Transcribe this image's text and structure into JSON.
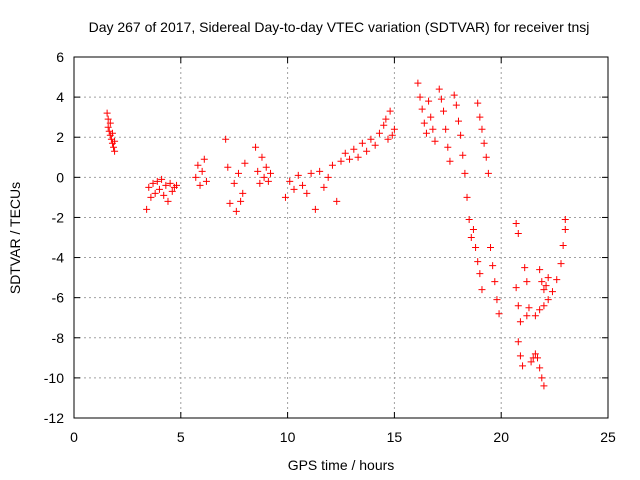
{
  "chart_data": {
    "type": "scatter",
    "title": "Day 267 of 2017, Sidereal Day-to-day VTEC variation (SDTVAR) for receiver tnsj",
    "xlabel": "GPS time / hours",
    "ylabel": "SDTVAR / TECUs",
    "xlim": [
      0,
      25
    ],
    "ylim": [
      -12,
      6
    ],
    "xticks": [
      0,
      5,
      10,
      15,
      20,
      25
    ],
    "yticks": [
      -12,
      -10,
      -8,
      -6,
      -4,
      -2,
      0,
      2,
      4,
      6
    ],
    "grid": true,
    "marker": "+",
    "color": "#ff0000",
    "series": [
      {
        "name": "SDTVAR",
        "points": [
          [
            1.55,
            3.2
          ],
          [
            1.6,
            2.9
          ],
          [
            1.6,
            2.5
          ],
          [
            1.65,
            2.3
          ],
          [
            1.7,
            2.1
          ],
          [
            1.7,
            2.7
          ],
          [
            1.75,
            1.9
          ],
          [
            1.8,
            1.7
          ],
          [
            1.8,
            2.2
          ],
          [
            1.85,
            1.5
          ],
          [
            1.9,
            1.3
          ],
          [
            1.9,
            1.8
          ],
          [
            3.4,
            -1.6
          ],
          [
            3.5,
            -0.5
          ],
          [
            3.6,
            -1.0
          ],
          [
            3.7,
            -0.3
          ],
          [
            3.8,
            -0.8
          ],
          [
            3.9,
            -0.2
          ],
          [
            4.0,
            -0.6
          ],
          [
            4.1,
            -0.1
          ],
          [
            4.2,
            -0.9
          ],
          [
            4.3,
            -0.4
          ],
          [
            4.4,
            -1.2
          ],
          [
            4.5,
            -0.3
          ],
          [
            4.6,
            -0.7
          ],
          [
            4.7,
            -0.5
          ],
          [
            4.8,
            -0.4
          ],
          [
            5.7,
            0.0
          ],
          [
            5.8,
            0.6
          ],
          [
            5.9,
            -0.4
          ],
          [
            6.0,
            0.3
          ],
          [
            6.1,
            0.9
          ],
          [
            6.2,
            -0.2
          ],
          [
            7.1,
            1.9
          ],
          [
            7.2,
            0.5
          ],
          [
            7.3,
            -1.3
          ],
          [
            7.5,
            -0.3
          ],
          [
            7.6,
            -1.7
          ],
          [
            7.7,
            0.2
          ],
          [
            7.8,
            -1.2
          ],
          [
            7.9,
            -0.8
          ],
          [
            8.0,
            0.7
          ],
          [
            8.5,
            1.5
          ],
          [
            8.6,
            0.3
          ],
          [
            8.7,
            -0.3
          ],
          [
            8.8,
            1.0
          ],
          [
            8.9,
            0.0
          ],
          [
            9.0,
            0.5
          ],
          [
            9.1,
            -0.2
          ],
          [
            9.2,
            0.2
          ],
          [
            9.9,
            -1.0
          ],
          [
            10.1,
            -0.2
          ],
          [
            10.3,
            -0.6
          ],
          [
            10.5,
            0.1
          ],
          [
            10.7,
            -0.4
          ],
          [
            10.9,
            -0.8
          ],
          [
            11.1,
            0.2
          ],
          [
            11.3,
            -1.6
          ],
          [
            11.5,
            0.3
          ],
          [
            11.7,
            -0.5
          ],
          [
            11.9,
            0.0
          ],
          [
            12.1,
            0.6
          ],
          [
            12.3,
            -1.2
          ],
          [
            12.5,
            0.8
          ],
          [
            12.7,
            1.2
          ],
          [
            12.9,
            0.9
          ],
          [
            13.1,
            1.4
          ],
          [
            13.3,
            1.0
          ],
          [
            13.5,
            1.7
          ],
          [
            13.7,
            1.3
          ],
          [
            13.9,
            1.9
          ],
          [
            14.1,
            1.6
          ],
          [
            14.3,
            2.2
          ],
          [
            14.5,
            2.6
          ],
          [
            14.6,
            2.9
          ],
          [
            14.7,
            1.9
          ],
          [
            14.8,
            3.3
          ],
          [
            14.9,
            2.1
          ],
          [
            15.0,
            2.4
          ],
          [
            16.1,
            4.7
          ],
          [
            16.2,
            4.0
          ],
          [
            16.3,
            3.4
          ],
          [
            16.4,
            2.7
          ],
          [
            16.5,
            2.2
          ],
          [
            16.6,
            3.8
          ],
          [
            16.7,
            3.0
          ],
          [
            16.8,
            2.4
          ],
          [
            16.9,
            1.8
          ],
          [
            17.1,
            4.4
          ],
          [
            17.2,
            3.9
          ],
          [
            17.3,
            3.3
          ],
          [
            17.4,
            2.4
          ],
          [
            17.5,
            1.5
          ],
          [
            17.6,
            0.8
          ],
          [
            17.8,
            4.1
          ],
          [
            17.9,
            3.6
          ],
          [
            18.0,
            2.8
          ],
          [
            18.1,
            2.1
          ],
          [
            18.2,
            1.1
          ],
          [
            18.3,
            0.2
          ],
          [
            18.4,
            -1.0
          ],
          [
            18.5,
            -2.1
          ],
          [
            18.6,
            -3.0
          ],
          [
            18.7,
            -2.6
          ],
          [
            18.8,
            -3.5
          ],
          [
            18.9,
            -4.2
          ],
          [
            19.0,
            -4.8
          ],
          [
            19.1,
            -5.6
          ],
          [
            18.9,
            3.7
          ],
          [
            19.0,
            3.0
          ],
          [
            19.1,
            2.4
          ],
          [
            19.2,
            1.7
          ],
          [
            19.3,
            1.0
          ],
          [
            19.4,
            0.2
          ],
          [
            19.5,
            -3.5
          ],
          [
            19.6,
            -4.4
          ],
          [
            19.7,
            -5.2
          ],
          [
            19.8,
            -6.1
          ],
          [
            19.9,
            -6.8
          ],
          [
            20.7,
            -2.3
          ],
          [
            20.8,
            -2.8
          ],
          [
            20.7,
            -5.5
          ],
          [
            20.8,
            -6.4
          ],
          [
            20.9,
            -7.2
          ],
          [
            20.8,
            -8.2
          ],
          [
            20.9,
            -8.9
          ],
          [
            21.0,
            -9.4
          ],
          [
            21.1,
            -4.5
          ],
          [
            21.2,
            -5.2
          ],
          [
            21.2,
            -6.9
          ],
          [
            21.3,
            -6.5
          ],
          [
            21.4,
            -9.2
          ],
          [
            21.5,
            -9.0
          ],
          [
            21.6,
            -8.8
          ],
          [
            21.7,
            -9.0
          ],
          [
            21.8,
            -9.5
          ],
          [
            21.9,
            -10.0
          ],
          [
            22.0,
            -10.4
          ],
          [
            21.8,
            -4.6
          ],
          [
            21.9,
            -5.2
          ],
          [
            22.0,
            -5.6
          ],
          [
            22.1,
            -5.4
          ],
          [
            22.2,
            -5.0
          ],
          [
            21.6,
            -6.9
          ],
          [
            21.8,
            -6.6
          ],
          [
            22.0,
            -6.4
          ],
          [
            22.2,
            -6.1
          ],
          [
            22.4,
            -5.7
          ],
          [
            22.6,
            -5.1
          ],
          [
            22.8,
            -4.3
          ],
          [
            22.9,
            -3.4
          ],
          [
            23.0,
            -2.6
          ],
          [
            23.0,
            -2.1
          ]
        ]
      }
    ]
  }
}
